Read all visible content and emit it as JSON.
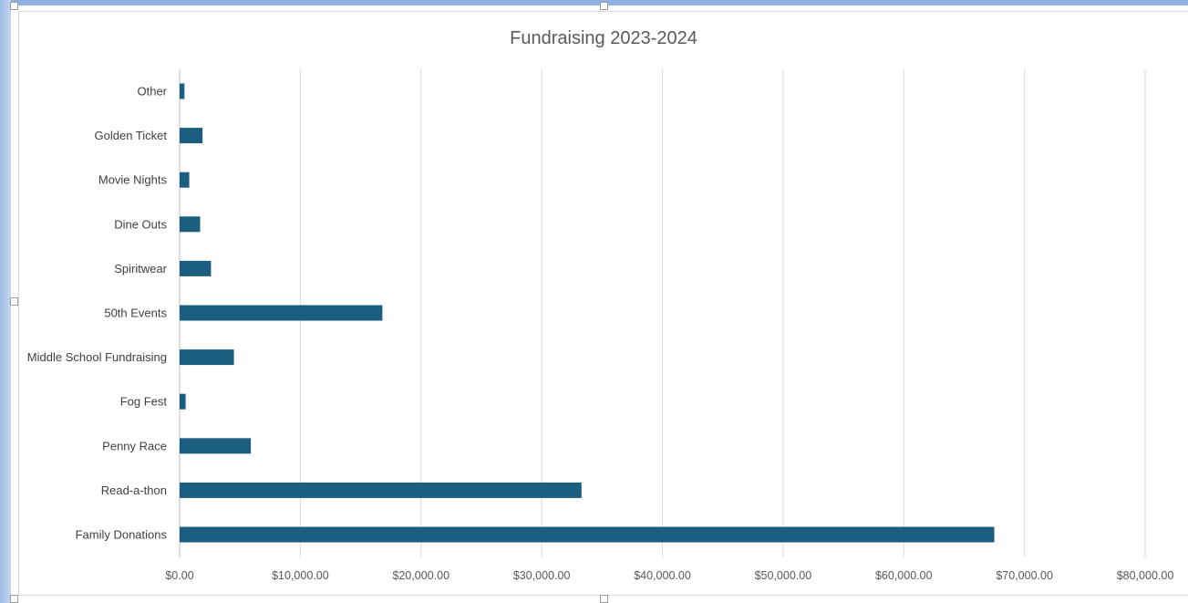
{
  "chart_data": {
    "type": "bar",
    "orientation": "horizontal",
    "title": "Fundraising 2023-2024",
    "xlabel": "",
    "ylabel": "",
    "categories": [
      "Family Donations",
      "Read-a-thon",
      "Penny Race",
      "Fog Fest",
      "Middle School Fundraising",
      "50th Events",
      "Spiritwear",
      "Dine Outs",
      "Movie Nights",
      "Golden Ticket",
      "Other"
    ],
    "values": [
      67500,
      33300,
      5900,
      500,
      4500,
      16800,
      2600,
      1700,
      800,
      1900,
      400
    ],
    "xlim": [
      0,
      80000
    ],
    "tick_values": [
      0,
      10000,
      20000,
      30000,
      40000,
      50000,
      60000,
      70000,
      80000
    ],
    "tick_labels": [
      "$0.00",
      "$10,000.00",
      "$20,000.00",
      "$30,000.00",
      "$40,000.00",
      "$50,000.00",
      "$60,000.00",
      "$70,000.00",
      "$80,000.00"
    ],
    "grid": true,
    "legend": "none",
    "bar_color": "#1b5e80"
  }
}
